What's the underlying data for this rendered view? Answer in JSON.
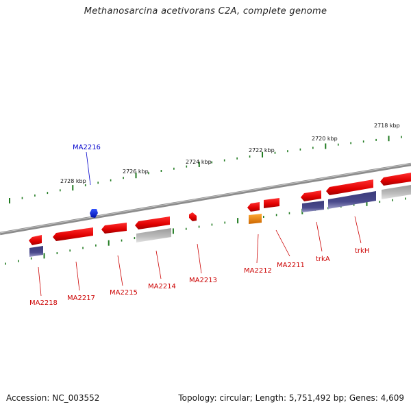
{
  "title": "Methanosarcina acetivorans C2A, complete genome",
  "footer": {
    "accession": "Accession: NC_003552",
    "summary": "Topology: circular; Length: 5,751,492 bp; Genes: 4,609"
  },
  "scale_labels": [
    "2728 kbp",
    "2726 kbp",
    "2724 kbp",
    "2722 kbp",
    "2720 kbp",
    "2718 kbp"
  ],
  "colors": {
    "backbone": "#8c8c8c",
    "tick": "#1f7a1f",
    "gene_red": "#ee1111",
    "gene_blue": "#1133ee",
    "gene_orange": "#ff9911",
    "feature_purple": "#4a4a8c",
    "feature_gray": "#b8b8b8",
    "label_red": "#cc0000",
    "label_blue": "#0000cc"
  },
  "genes": [
    {
      "label": "MA2216",
      "color": "blue"
    },
    {
      "label": "MA2218",
      "color": "red"
    },
    {
      "label": "MA2217",
      "color": "red"
    },
    {
      "label": "MA2215",
      "color": "red"
    },
    {
      "label": "MA2214",
      "color": "red"
    },
    {
      "label": "MA2213",
      "color": "red"
    },
    {
      "label": "MA2212",
      "color": "red"
    },
    {
      "label": "MA2211",
      "color": "red"
    },
    {
      "label": "trkA",
      "color": "red"
    },
    {
      "label": "trkH",
      "color": "red"
    }
  ]
}
